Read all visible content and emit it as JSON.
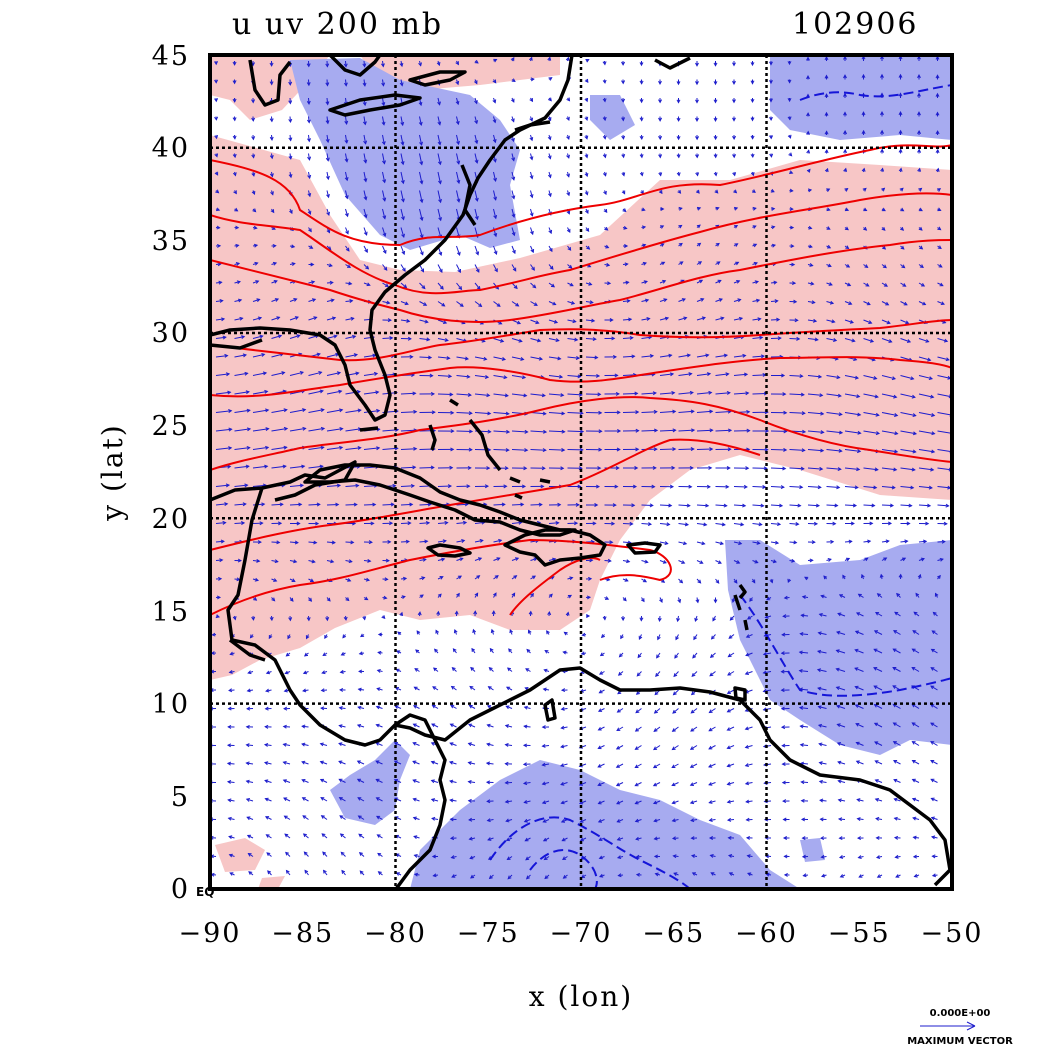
{
  "header": {
    "title": "u uv 200 mb",
    "date_code": "102906"
  },
  "axes": {
    "xlabel": "x (lon)",
    "ylabel": "y (lat)",
    "x_ticks": [
      "−90",
      "−85",
      "−80",
      "−75",
      "−70",
      "−65",
      "−60",
      "−55",
      "−50"
    ],
    "y_ticks": [
      "45",
      "40",
      "35",
      "30",
      "25",
      "20",
      "15",
      "10",
      "5",
      "0"
    ],
    "equator_label": "EQ"
  },
  "legend": {
    "value": "0.000E+00",
    "caption": "MAXIMUM VECTOR"
  },
  "chart_data": {
    "type": "heatmap",
    "title": "u uv 200 mb",
    "subtitle": "102906",
    "xlabel": "x (lon)",
    "ylabel": "y (lat)",
    "xlim": [
      -90,
      -50
    ],
    "ylim": [
      0,
      45
    ],
    "grid": true,
    "x_grid": [
      -80,
      -70,
      -60
    ],
    "y_grid": [
      10,
      20,
      30,
      40
    ],
    "shading": {
      "positive_color": "#f7c6c6",
      "negative_color": "#a7abf0"
    },
    "contour_colors": {
      "positive": "#ee0000",
      "negative": "#1515d8"
    },
    "vector_color": "#1d1dcc",
    "coastline_color": "#000000"
  }
}
